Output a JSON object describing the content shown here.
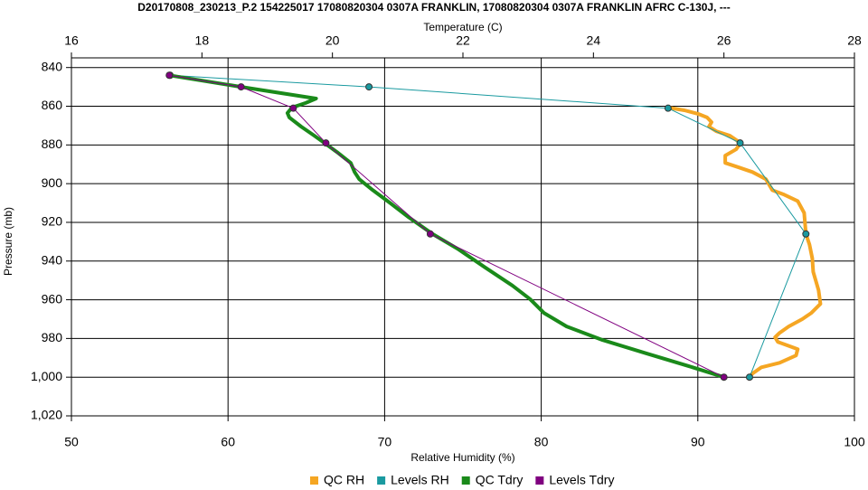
{
  "chart_data": {
    "type": "line",
    "title": "D20170808_230213_P.2 154225017 17080820304 0307A FRANKLIN, 17080820304 0307A FRANKLIN AFRC C-130J, ---",
    "x_label": "Relative Humidity (%)",
    "x2_label": "Temperature (C)",
    "y_label": "Pressure (mb)",
    "xlim": [
      50,
      100
    ],
    "xticks": [
      50,
      60,
      70,
      80,
      90,
      100
    ],
    "x2lim": [
      16,
      28
    ],
    "x2ticks": [
      16,
      18,
      20,
      22,
      24,
      26,
      28
    ],
    "ylim": [
      835,
      1020
    ],
    "y_inverted": true,
    "yticks": [
      840,
      860,
      880,
      900,
      920,
      940,
      960,
      980,
      {
        "value": 1000,
        "label": "1,000"
      },
      {
        "value": 1020,
        "label": "1,020"
      }
    ],
    "grid": true,
    "series": [
      {
        "name": "QC RH",
        "color": "#f5a623",
        "axis": "x",
        "markers": false,
        "x": [
          88.1,
          89.14,
          90.01,
          90.59,
          90.88,
          90.71,
          91.17,
          92.04,
          92.73,
          92.44,
          91.75,
          91.75,
          92.62,
          93.49,
          94.35,
          94.76,
          95.51,
          96.38,
          96.79,
          96.9,
          97.13,
          97.31,
          97.37,
          97.71,
          97.83,
          97.25,
          96.67,
          95.8,
          95.22,
          94.93,
          95.11,
          96.38,
          96.27,
          95.22,
          94.06,
          93.49,
          93.26
        ],
        "y": [
          860.7,
          862.1,
          863.9,
          865.8,
          868.2,
          870.5,
          872.9,
          875.2,
          879,
          882.3,
          885.5,
          889.3,
          891.6,
          894,
          897.7,
          903.4,
          905.7,
          909,
          915.1,
          925.9,
          931.5,
          938.6,
          945.6,
          955,
          962.1,
          966.8,
          970,
          973.8,
          977.1,
          979.4,
          981.8,
          985.5,
          988.8,
          992.6,
          994.9,
          998.2,
          1000
        ]
      },
      {
        "name": "Levels RH",
        "color": "#1a9aa0",
        "axis": "x",
        "markers": true,
        "x": [
          56.3,
          69.0,
          88.1,
          92.7,
          96.9,
          93.3
        ],
        "y": [
          844,
          850,
          861,
          879,
          926,
          1000
        ]
      },
      {
        "name": "QC Tdry",
        "color": "#1a8a1a",
        "axis": "x2",
        "markers": false,
        "x": [
          17.5,
          18.6,
          19.75,
          19.59,
          19.38,
          19.31,
          19.34,
          19.52,
          19.72,
          19.88,
          20.07,
          20.28,
          20.34,
          20.41,
          20.62,
          20.9,
          21.17,
          21.53,
          21.93,
          22.34,
          22.76,
          23.03,
          23.24,
          23.59,
          24.14,
          24.83,
          25.52,
          26.0
        ],
        "y": [
          844,
          850,
          856,
          858.3,
          860.7,
          863.5,
          865.8,
          870.5,
          875.2,
          879,
          883.7,
          889.3,
          894,
          897.7,
          903.4,
          910.4,
          917.4,
          925.9,
          933.9,
          943.3,
          952.7,
          959.7,
          966.8,
          973.8,
          980.8,
          987.9,
          994.9,
          1000
        ]
      },
      {
        "name": "Levels Tdry",
        "color": "#800080",
        "axis": "x2",
        "markers": true,
        "x": [
          17.5,
          18.6,
          19.4,
          19.9,
          21.5,
          26.0
        ],
        "y": [
          844,
          850,
          861,
          879,
          926,
          1000
        ]
      }
    ]
  }
}
